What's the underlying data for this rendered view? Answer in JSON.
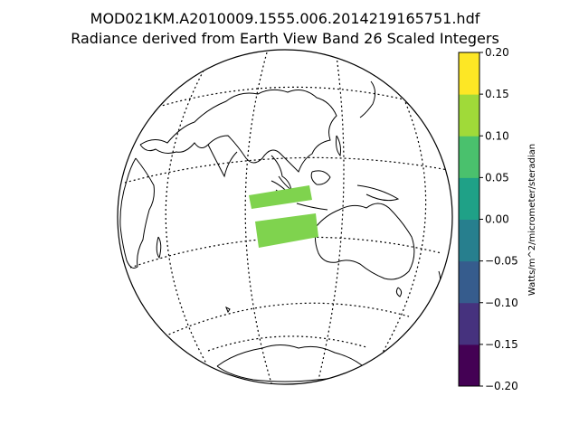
{
  "title": {
    "line1": "MOD021KM.A2010009.1555.006.2014219165751.hdf",
    "line2": "Radiance derived from Earth View Band 26 Scaled Integers"
  },
  "colorbar": {
    "label": "Watts/m^2/micrometer/steradian",
    "ticks": [
      "0.20",
      "0.15",
      "0.10",
      "0.05",
      "0.00",
      "−0.05",
      "−0.10",
      "−0.15",
      "−0.20"
    ],
    "range": [
      -0.2,
      0.2
    ],
    "colors": [
      "#440154",
      "#46327e",
      "#365c8d",
      "#277f8e",
      "#1fa187",
      "#4ac16d",
      "#a0da39",
      "#fde725"
    ]
  },
  "map": {
    "projection": "orthographic",
    "graticule": "dotted",
    "swath_colors": [
      "#6ccd5a",
      "#8ed645",
      "#4ac16d",
      "#a0da39"
    ]
  }
}
